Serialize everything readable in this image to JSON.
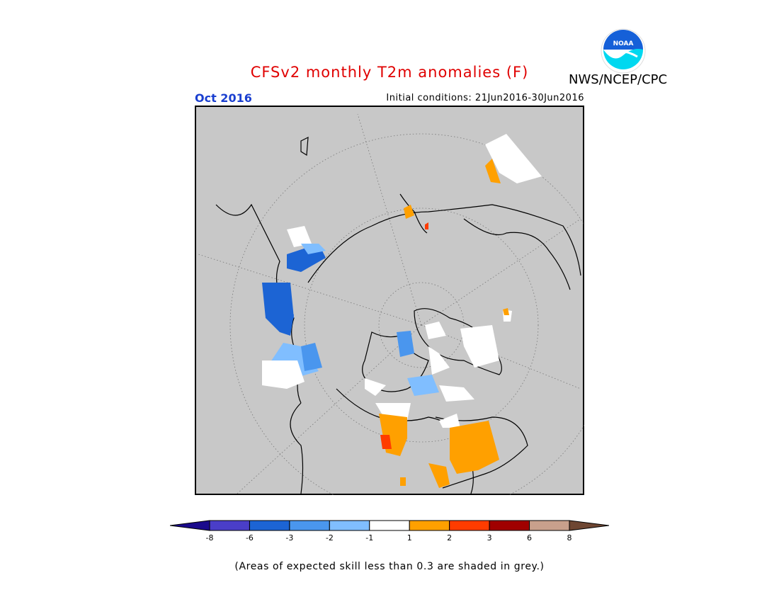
{
  "header": {
    "title": "CFSv2 monthly T2m anomalies (F)",
    "credit": "NWS/NCEP/CPC",
    "valid_month": "Oct 2016",
    "initial_conditions": "Initial conditions: 21Jun2016-30Jun2016"
  },
  "colors": {
    "title": "#e00000",
    "date": "#1a3fd0",
    "background_grey": "#c8c8c8",
    "noaa_blue": "#1560d8",
    "noaa_cyan": "#00d8f0"
  },
  "legend": {
    "ticks": [
      "-8",
      "-6",
      "-3",
      "-2",
      "-1",
      "1",
      "2",
      "3",
      "6",
      "8"
    ],
    "bins": [
      {
        "range": "below -8",
        "color": "#1a0a8c"
      },
      {
        "range": "-8 to -6",
        "color": "#4a3ec8"
      },
      {
        "range": "-6 to -3",
        "color": "#1c64d4"
      },
      {
        "range": "-3 to -2",
        "color": "#4a96ee"
      },
      {
        "range": "-2 to -1",
        "color": "#80beff"
      },
      {
        "range": "-1 to 1",
        "color": "#ffffff"
      },
      {
        "range": "1 to 2",
        "color": "#ffa000"
      },
      {
        "range": "2 to 3",
        "color": "#ff3c00"
      },
      {
        "range": "3 to 6",
        "color": "#a00000"
      },
      {
        "range": "6 to 8",
        "color": "#c8a08c"
      },
      {
        "range": "above 8",
        "color": "#6e4632"
      }
    ]
  },
  "footnote": "(Areas of expected skill less than 0.3 are shaded in grey.)"
}
